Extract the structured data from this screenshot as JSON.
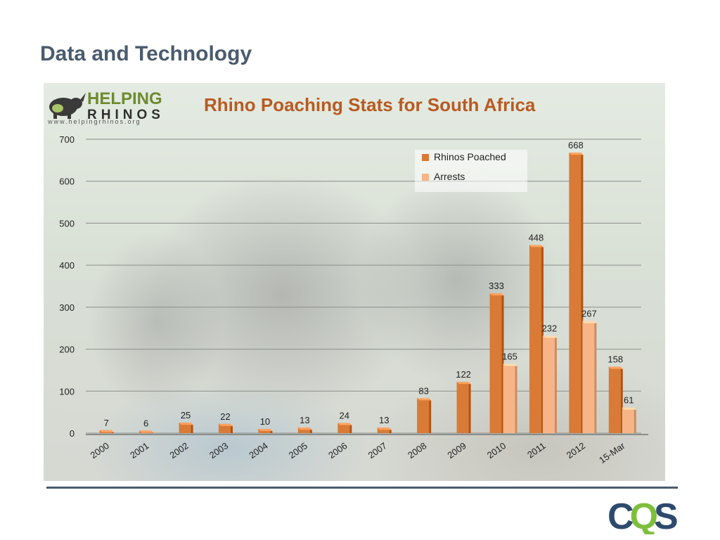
{
  "slide": {
    "title": "Data and Technology"
  },
  "branding": {
    "helping": "HELPING",
    "rhinos": "RHINOS",
    "url": "www.helpingrhinos.org",
    "company_logo_text": "CQS"
  },
  "colors": {
    "title": "#4a5b6e",
    "poached": "#d97a36",
    "arrests": "#f6b487",
    "chart_title": "#b85a22",
    "cqs_dark": "#2d4a6e",
    "cqs_green": "#7dbf3c"
  },
  "chart_data": {
    "type": "bar",
    "title": "Rhino Poaching Stats for South Africa",
    "categories": [
      "2000",
      "2001",
      "2002",
      "2003",
      "2004",
      "2005",
      "2006",
      "2007",
      "2008",
      "2009",
      "2010",
      "2011",
      "2012",
      "15-Mar"
    ],
    "series": [
      {
        "name": "Rhinos Poached",
        "values": [
          7,
          6,
          25,
          22,
          10,
          13,
          24,
          13,
          83,
          122,
          333,
          448,
          668,
          158
        ]
      },
      {
        "name": "Arrests",
        "values": [
          null,
          null,
          null,
          null,
          null,
          null,
          null,
          null,
          null,
          null,
          165,
          232,
          267,
          61
        ]
      }
    ],
    "ylim": [
      0,
      700
    ],
    "yticks": [
      0,
      100,
      200,
      300,
      400,
      500,
      600,
      700
    ],
    "grid": true,
    "legend_position": "top-right",
    "data_labels": true
  }
}
